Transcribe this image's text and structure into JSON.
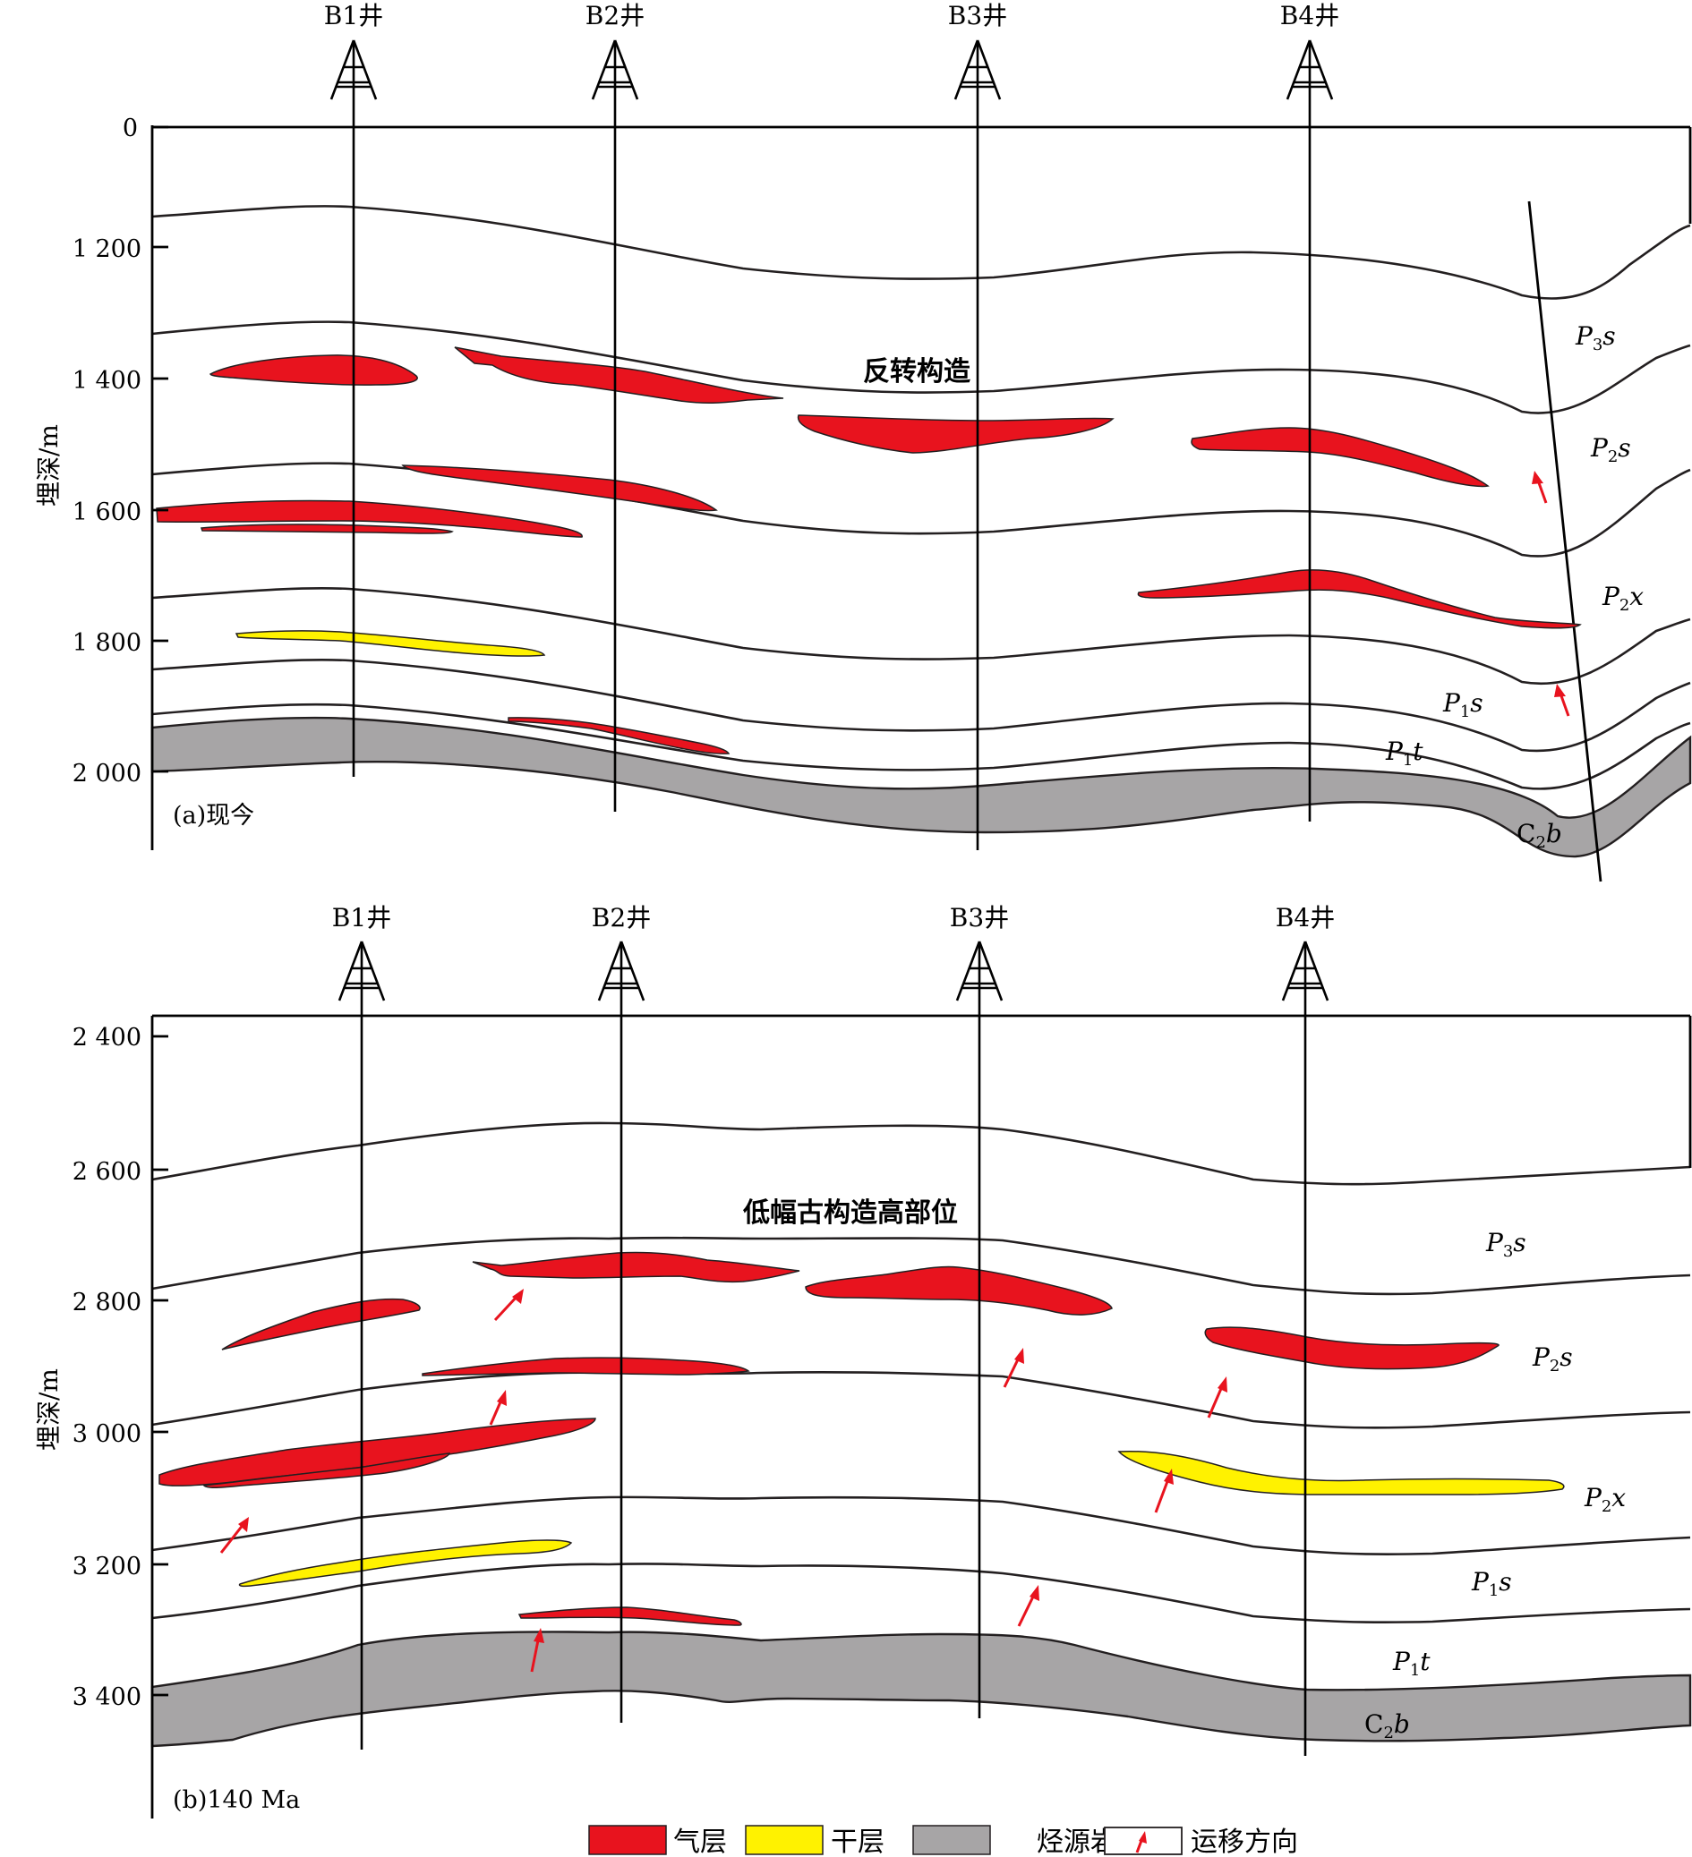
{
  "panels": [
    {
      "label": "(a)现今",
      "axis_title": "埋深/m",
      "ticks": [
        "0",
        "1 200",
        "1 400",
        "1 600",
        "1 800",
        "2 000"
      ],
      "wells": [
        "B1井",
        "B2井",
        "B3井",
        "B4井"
      ],
      "annotation": "反转构造",
      "formations": [
        "P3s",
        "P2s",
        "P2x",
        "P1s",
        "P1t",
        "C2b"
      ]
    },
    {
      "label": "(b)140 Ma",
      "axis_title": "埋深/m",
      "ticks": [
        "2 400",
        "2 600",
        "2 800",
        "3 000",
        "3 200",
        "3 400"
      ],
      "wells": [
        "B1井",
        "B2井",
        "B3井",
        "B4井"
      ],
      "annotation": "低幅古构造高部位",
      "formations": [
        "P3s",
        "P2s",
        "P2x",
        "P1s",
        "P1t",
        "C2b"
      ]
    }
  ],
  "legend": [
    {
      "label": "气层",
      "color": "#e8131e"
    },
    {
      "label": "干层",
      "color": "#fff200"
    },
    {
      "label": "烃源岩",
      "color": "#a7a5a6"
    },
    {
      "label": "运移方向",
      "icon": "red-arrow-icon"
    }
  ],
  "colors": {
    "gas": "#e8131e",
    "dry": "#fff200",
    "source_rock": "#a7a5a6"
  }
}
